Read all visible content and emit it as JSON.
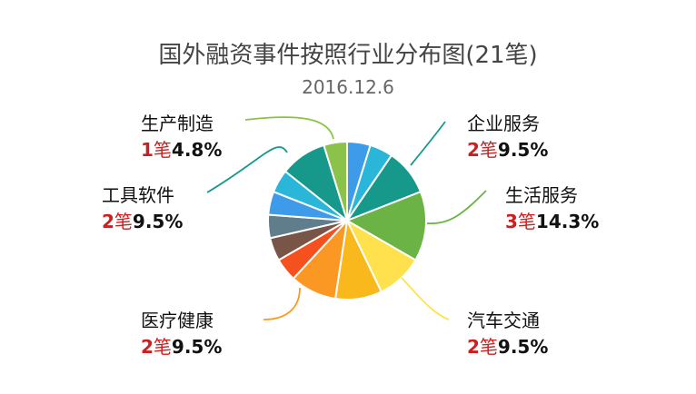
{
  "title": "国外融资事件按照行业分布图(21笔)",
  "subtitle": "2016.12.6",
  "chart_data": {
    "type": "pie",
    "total": 21,
    "slices": [
      {
        "value": 1,
        "color": "#3d9be9"
      },
      {
        "value": 1,
        "color": "#29b6d8"
      },
      {
        "value": 2,
        "color": "#16998a"
      },
      {
        "value": 3,
        "color": "#6ab344"
      },
      {
        "value": 2,
        "color": "#ffe14d"
      },
      {
        "value": 2,
        "color": "#f9b81c"
      },
      {
        "value": 2,
        "color": "#fb9824"
      },
      {
        "value": 1,
        "color": "#f4511e"
      },
      {
        "value": 1,
        "color": "#795548"
      },
      {
        "value": 1,
        "color": "#607d8b"
      },
      {
        "value": 1,
        "color": "#3d9be9"
      },
      {
        "value": 1,
        "color": "#29b6d8"
      },
      {
        "value": 2,
        "color": "#16998a"
      },
      {
        "value": 1,
        "color": "#8bc34a"
      }
    ],
    "labels": [
      {
        "name": "企业服务",
        "count": "2",
        "unit": "笔",
        "percent": "9.5%",
        "line_color": "#16998a"
      },
      {
        "name": "生活服务",
        "count": "3",
        "unit": "笔",
        "percent": "14.3%",
        "line_color": "#6ab344"
      },
      {
        "name": "汽车交通",
        "count": "2",
        "unit": "笔",
        "percent": "9.5%",
        "line_color": "#ffe14d"
      },
      {
        "name": "医疗健康",
        "count": "2",
        "unit": "笔",
        "percent": "9.5%",
        "line_color": "#fb9824"
      },
      {
        "name": "工具软件",
        "count": "2",
        "unit": "笔",
        "percent": "9.5%",
        "line_color": "#16998a"
      },
      {
        "name": "生产制造",
        "count": "1",
        "unit": "笔",
        "percent": "4.8%",
        "line_color": "#8bc34a"
      }
    ]
  }
}
